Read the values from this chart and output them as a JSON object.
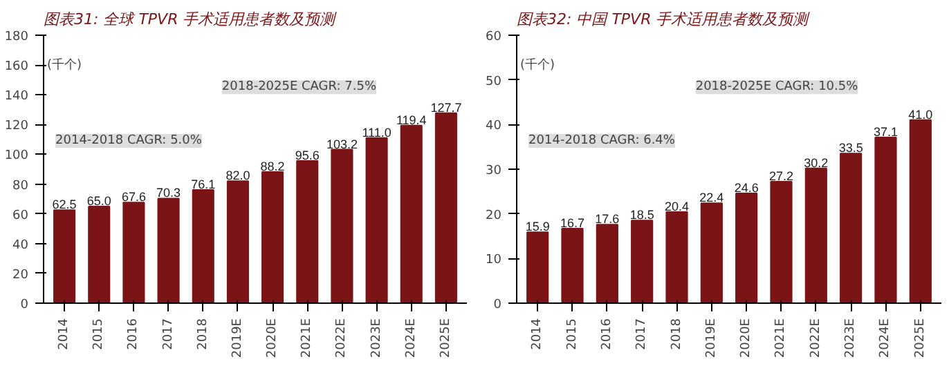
{
  "chart_data": [
    {
      "type": "bar",
      "title": "图表31: 全球 TPVR 手术适用患者数及预测",
      "categories": [
        "2014",
        "2015",
        "2016",
        "2017",
        "2018",
        "2019E",
        "2020E",
        "2021E",
        "2022E",
        "2023E",
        "2024E",
        "2025E"
      ],
      "values": [
        62.5,
        65.0,
        67.6,
        70.3,
        76.1,
        82.0,
        88.2,
        95.6,
        103.2,
        111.0,
        119.4,
        127.7
      ],
      "color": "#7b1416",
      "ylim": [
        0,
        180
      ],
      "yticks": [
        0,
        20,
        40,
        60,
        80,
        100,
        120,
        140,
        160,
        180
      ],
      "value_labels": [
        "62.5",
        "65.0",
        "67.6",
        "70.3",
        "76.1",
        "82.0",
        "88.2",
        "95.6",
        "103.2",
        "111.0",
        "119.4",
        "127.7"
      ],
      "annotations": [
        "(千个)",
        "2014-2018 CAGR: 5.0%",
        "2018-2025E CAGR: 7.5%"
      ]
    },
    {
      "type": "bar",
      "title": "图表32: 中国 TPVR 手术适用患者数及预测",
      "categories": [
        "2014",
        "2015",
        "2016",
        "2017",
        "2018",
        "2019E",
        "2020E",
        "2021E",
        "2022E",
        "2023E",
        "2024E",
        "2025E"
      ],
      "values": [
        15.9,
        16.7,
        17.6,
        18.5,
        20.4,
        22.4,
        24.6,
        27.2,
        30.2,
        33.5,
        37.1,
        41.0
      ],
      "color": "#7b1416",
      "ylim": [
        0,
        60
      ],
      "yticks": [
        0,
        10,
        20,
        30,
        40,
        50,
        60
      ],
      "value_labels": [
        "15.9",
        "16.7",
        "17.6",
        "18.5",
        "20.4",
        "22.4",
        "24.6",
        "27.2",
        "30.2",
        "33.5",
        "37.1",
        "41.0"
      ],
      "annotations": [
        "(千个)",
        "2014-2018 CAGR: 6.4%",
        "2018-2025E CAGR: 10.5%"
      ]
    }
  ]
}
